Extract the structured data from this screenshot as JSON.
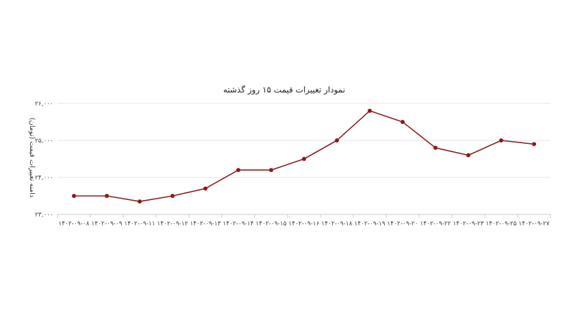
{
  "chart_data": {
    "type": "line",
    "title": "نمودار تغییرات قیمت ۱۵ روز گذشته",
    "xlabel": "",
    "ylabel": "دامنه تغییرات قیمت (تومان)",
    "categories": [
      "۱۴۰۲-۰۹-۰۸",
      "۱۴۰۲-۰۹-۰۹",
      "۱۴۰۲-۰۹-۱۱",
      "۱۴۰۲-۰۹-۱۲",
      "۱۴۰۲-۰۹-۱۳",
      "۱۴۰۲-۰۹-۱۴",
      "۱۴۰۲-۰۹-۱۵",
      "۱۴۰۲-۰۹-۱۶",
      "۱۴۰۲-۰۹-۱۸",
      "۱۴۰۲-۰۹-۱۹",
      "۱۴۰۲-۰۹-۲۰",
      "۱۴۰۲-۰۹-۲۲",
      "۱۴۰۲-۰۹-۲۳",
      "۱۴۰۲-۰۹-۲۵",
      "۱۴۰۲-۰۹-۲۷"
    ],
    "values": [
      23500,
      23500,
      23350,
      23500,
      23700,
      24200,
      24200,
      24500,
      25000,
      25800,
      25500,
      24800,
      24600,
      25000,
      24900
    ],
    "ylim": [
      23000,
      26000
    ],
    "yticks": [
      23000,
      24000,
      25000,
      26000
    ],
    "ytick_labels": [
      "۲۳,۰۰۰",
      "۲۴,۰۰۰",
      "۲۵,۰۰۰",
      "۲۶,۰۰۰"
    ],
    "grid": true,
    "line_color": "#8b1a1a",
    "point_color": "#8b1a1a",
    "grid_color": "#e6e6e6",
    "axis_color": "#cccccc"
  }
}
